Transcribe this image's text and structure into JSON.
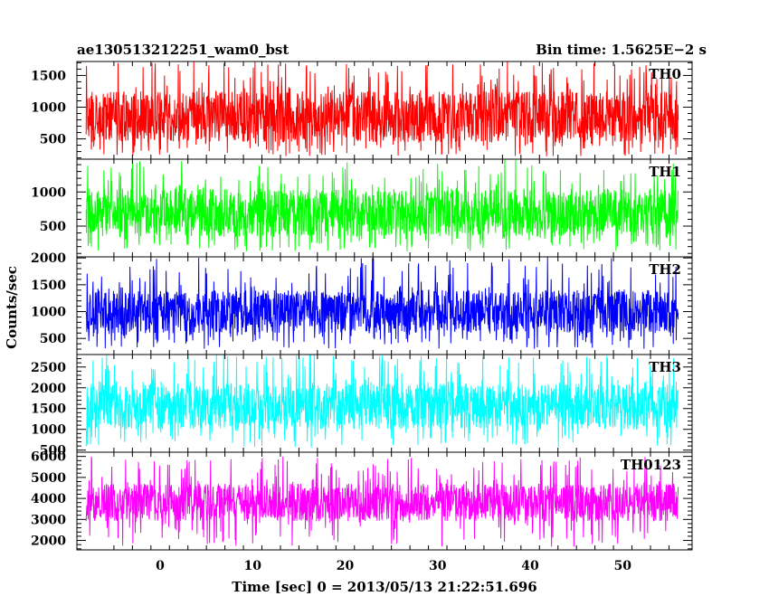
{
  "header": {
    "left_title": "ae130513212251_wam0_bst",
    "right_title": "Bin time: 1.5625E−2 s"
  },
  "axes": {
    "xlabel": "Time [sec] 0 = 2013/05/13 21:22:51.696",
    "ylabel": "Counts/sec"
  },
  "chart_data": {
    "type": "line",
    "x": {
      "min": -8.0,
      "max": 56.0,
      "range": [
        -9.0,
        57.5
      ],
      "ticks": [
        0,
        10,
        20,
        30,
        40,
        50
      ],
      "tick_labels": [
        "0",
        "10",
        "20",
        "30",
        "40",
        "50"
      ],
      "bin_time_s": 0.015625
    },
    "panels": [
      {
        "name": "TH0",
        "label": "TH0",
        "color": "#ff0000",
        "ylim": [
          180,
          1720
        ],
        "yticks": [
          500,
          1000,
          1500
        ],
        "ytick_labels": [
          "500",
          "1000",
          "1500"
        ],
        "typical_range": [
          450,
          1250
        ],
        "extreme_range": [
          220,
          1720
        ]
      },
      {
        "name": "TH1",
        "label": "TH1",
        "color": "#00ff00",
        "ylim": [
          50,
          1480
        ],
        "yticks": [
          500,
          1000
        ],
        "ytick_labels": [
          "500",
          "1000"
        ],
        "typical_range": [
          350,
          1050
        ],
        "extreme_range": [
          130,
          1480
        ]
      },
      {
        "name": "TH2",
        "label": "TH2",
        "color": "#0000ff",
        "ylim": [
          200,
          2020
        ],
        "yticks": [
          500,
          1000,
          1500,
          2000
        ],
        "ytick_labels": [
          "500",
          "1000",
          "1500",
          "2000"
        ],
        "typical_range": [
          600,
          1400
        ],
        "extreme_range": [
          300,
          2020
        ]
      },
      {
        "name": "TH3",
        "label": "TH3",
        "color": "#00ffff",
        "ylim": [
          450,
          2800
        ],
        "yticks": [
          500,
          1000,
          1500,
          2000,
          2500
        ],
        "ytick_labels": [
          "500",
          "1000",
          "1500",
          "2000",
          "2500"
        ],
        "typical_range": [
          1000,
          2100
        ],
        "extreme_range": [
          550,
          2800
        ]
      },
      {
        "name": "TH0123",
        "label": "TH0123",
        "color": "#ff00ff",
        "ylim": [
          1550,
          6200
        ],
        "yticks": [
          2000,
          3000,
          4000,
          5000,
          6000
        ],
        "ytick_labels": [
          "2000",
          "3000",
          "4000",
          "5000",
          "6000"
        ],
        "typical_range": [
          2900,
          4700
        ],
        "extreme_range": [
          1700,
          6000
        ]
      }
    ]
  }
}
